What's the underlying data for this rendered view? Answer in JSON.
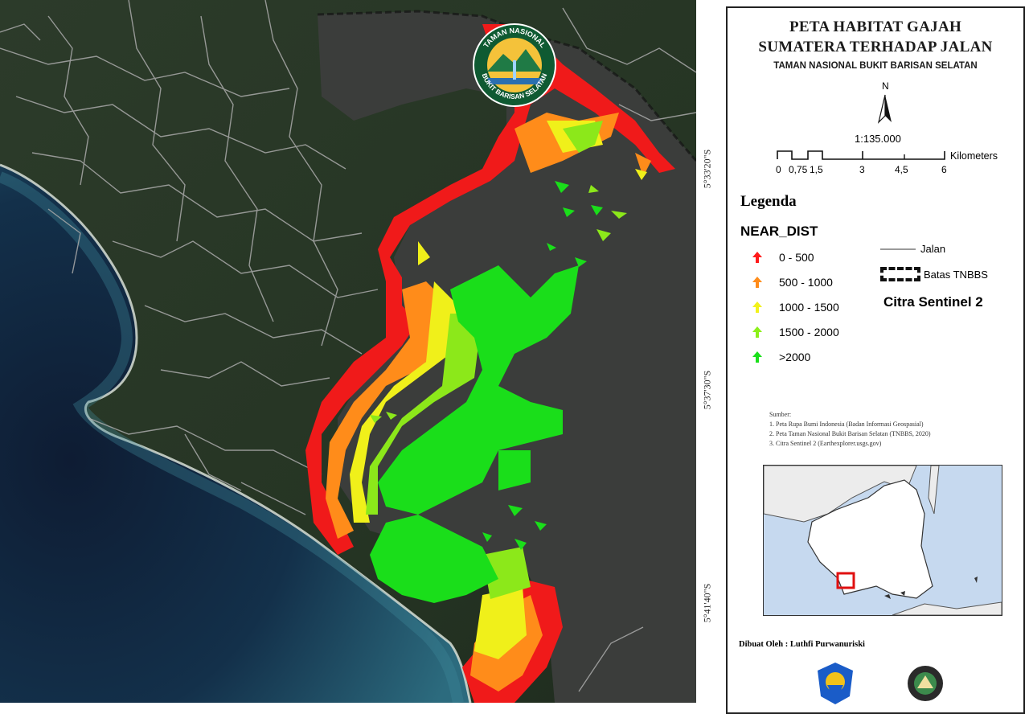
{
  "map": {
    "lat_labels": [
      "5°33'20\"S",
      "5°37'30\"S",
      "5°41'40\"S"
    ],
    "park_logo": {
      "text_top": "TAMAN NASIONAL",
      "text_bottom": "BUKIT BARISAN SELATAN"
    },
    "colors": {
      "sea_deep": "#11233a",
      "sea_shallow": "#2f6f86",
      "land": "#2a3a29",
      "park_interior": "#3a3c3a",
      "road": "#a7a7a7"
    }
  },
  "panel": {
    "title_line1": "PETA HABITAT GAJAH",
    "title_line2": "SUMATERA TERHADAP JALAN",
    "subtitle": "TAMAN NASIONAL BUKIT BARISAN SELATAN",
    "north_label": "N",
    "scale_ratio": "1:135.000",
    "scale_ticks": [
      "0",
      "0,75",
      "1,5",
      "3",
      "4,5",
      "6"
    ],
    "scale_unit": "Kilometers",
    "legend_title": "Legenda",
    "near_dist_title": "NEAR_DIST",
    "classes": [
      {
        "label": "0 - 500",
        "color": "#ff1a1a"
      },
      {
        "label": "500 - 1000",
        "color": "#ff8c1a"
      },
      {
        "label": "1000 - 1500",
        "color": "#f2f21a"
      },
      {
        "label": "1500 - 2000",
        "color": "#8cf01a"
      },
      {
        "label": ">2000",
        "color": "#1ae01a"
      }
    ],
    "jalan_label": "Jalan",
    "batas_label": "Batas TNBBS",
    "citra_label": "Citra Sentinel 2",
    "sources_title": "Sumber:",
    "sources": [
      "1. Peta Rupa Bumi Indonesia (Badan Informasi Geospasial)",
      "2. Peta Taman Nasional Bukit Barisan Selatan (TNBBS, 2020)",
      "3. Citra Sentinel 2 (Earthexplorer.usgs.gov)"
    ],
    "author": "Dibuat Oleh : Luthfi Purwanuriski"
  }
}
